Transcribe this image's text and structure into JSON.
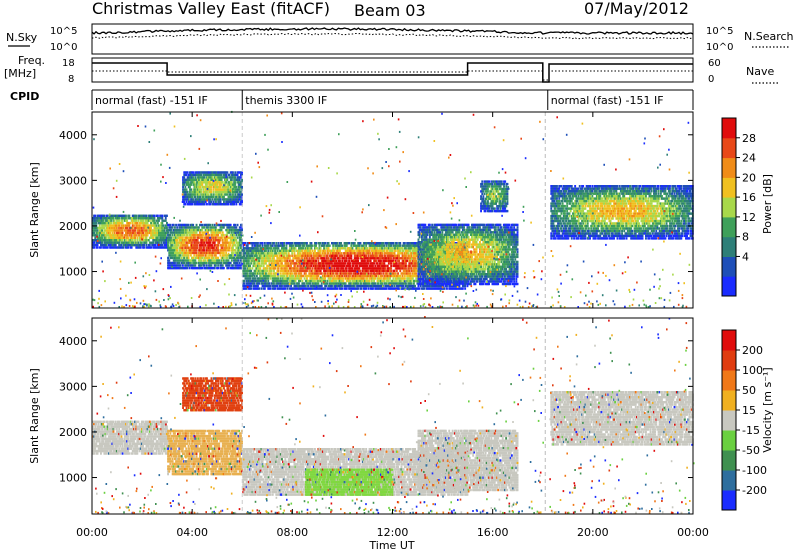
{
  "header": {
    "title": "Christmas Valley East (fitACF)",
    "beam": "Beam 03",
    "date": "07/May/2012"
  },
  "strip": {
    "nsky_label": "N.Sky",
    "nsky_ticks": [
      "10^5",
      "10^0"
    ],
    "nsearch_label": "N.Search",
    "nsearch_ticks": [
      "10^5",
      "10^0"
    ],
    "freq_label_1": "Freq.",
    "freq_label_2": "[MHz]",
    "freq_ticks": [
      "18",
      "8"
    ],
    "nave_label": "Nave",
    "nave_ticks": [
      "60",
      "0"
    ],
    "cpid_label": "CPID",
    "cpid_segments": [
      {
        "label": "normal (fast) -151 IF",
        "start_h": 0,
        "end_h": 6
      },
      {
        "label": "themis 3300 IF",
        "start_h": 6,
        "end_h": 18.2
      },
      {
        "label": "normal (fast) -151 IF",
        "start_h": 18.2,
        "end_h": 24
      }
    ]
  },
  "chart_data": [
    {
      "type": "heatmap",
      "name": "power",
      "ylabel": "Slant Range [km]",
      "yticks": [
        1000,
        2000,
        3000,
        4000
      ],
      "ylim": [
        200,
        4500
      ],
      "xlim_hours": [
        0,
        24
      ],
      "colorbar_label": "Power [dB]",
      "colorbar_ticks": [
        "28",
        "24",
        "20",
        "16",
        "12",
        "8",
        "4"
      ],
      "colors": [
        "#1a2cff",
        "#1e4fb8",
        "#2e7f78",
        "#3fa05a",
        "#a8d84a",
        "#f0c020",
        "#f08c18",
        "#e84818",
        "#e00c0c"
      ],
      "bands": [
        {
          "x_h": [
            0,
            3
          ],
          "range_km": [
            1500,
            2250
          ],
          "peak": 0.75
        },
        {
          "x_h": [
            3,
            6
          ],
          "range_km": [
            1050,
            2050
          ],
          "peak": 0.85
        },
        {
          "x_h": [
            3.6,
            6
          ],
          "range_km": [
            2450,
            3200
          ],
          "peak": 0.55
        },
        {
          "x_h": [
            6,
            15
          ],
          "range_km": [
            600,
            1650
          ],
          "peak": 0.95
        },
        {
          "x_h": [
            13,
            17
          ],
          "range_km": [
            700,
            2050
          ],
          "peak": 0.6
        },
        {
          "x_h": [
            15.5,
            16.6
          ],
          "range_km": [
            2300,
            3000
          ],
          "peak": 0.45
        },
        {
          "x_h": [
            18.3,
            24
          ],
          "range_km": [
            1700,
            2900
          ],
          "peak": 0.6
        }
      ]
    },
    {
      "type": "heatmap",
      "name": "velocity",
      "ylabel": "Slant Range [km]",
      "yticks": [
        1000,
        2000,
        3000,
        4000
      ],
      "ylim": [
        200,
        4500
      ],
      "xlim_hours": [
        0,
        24
      ],
      "colorbar_label": "Velocity [m s⁻¹]",
      "colorbar_ticks": [
        "200",
        "100",
        "50",
        "15",
        "-15",
        "-50",
        "-100",
        "-200"
      ],
      "colors": [
        "#1a2cff",
        "#2e6e9e",
        "#3f9050",
        "#6ad040",
        "#c8c8c0",
        "#f0b020",
        "#f07818",
        "#e03c10",
        "#e00c0c"
      ],
      "bands": [
        {
          "x_h": [
            0,
            3
          ],
          "range_km": [
            1500,
            2250
          ],
          "color": "#c8c8c0"
        },
        {
          "x_h": [
            3,
            6
          ],
          "range_km": [
            1050,
            2050
          ],
          "color": "#e8b050"
        },
        {
          "x_h": [
            3.6,
            6
          ],
          "range_km": [
            2450,
            3200
          ],
          "color": "#e04010"
        },
        {
          "x_h": [
            6,
            15
          ],
          "range_km": [
            600,
            1650
          ],
          "color": "#c8c8c0"
        },
        {
          "x_h": [
            8.5,
            12
          ],
          "range_km": [
            600,
            1200
          ],
          "color": "#80d840"
        },
        {
          "x_h": [
            13,
            17
          ],
          "range_km": [
            700,
            2050
          ],
          "color": "#c8c8c0"
        },
        {
          "x_h": [
            18.3,
            24
          ],
          "range_km": [
            1700,
            2900
          ],
          "color": "#c8c8c0"
        }
      ]
    }
  ],
  "xaxis": {
    "label": "Time UT",
    "ticks": [
      "00:00",
      "04:00",
      "08:00",
      "12:00",
      "16:00",
      "20:00",
      "00:00"
    ]
  }
}
